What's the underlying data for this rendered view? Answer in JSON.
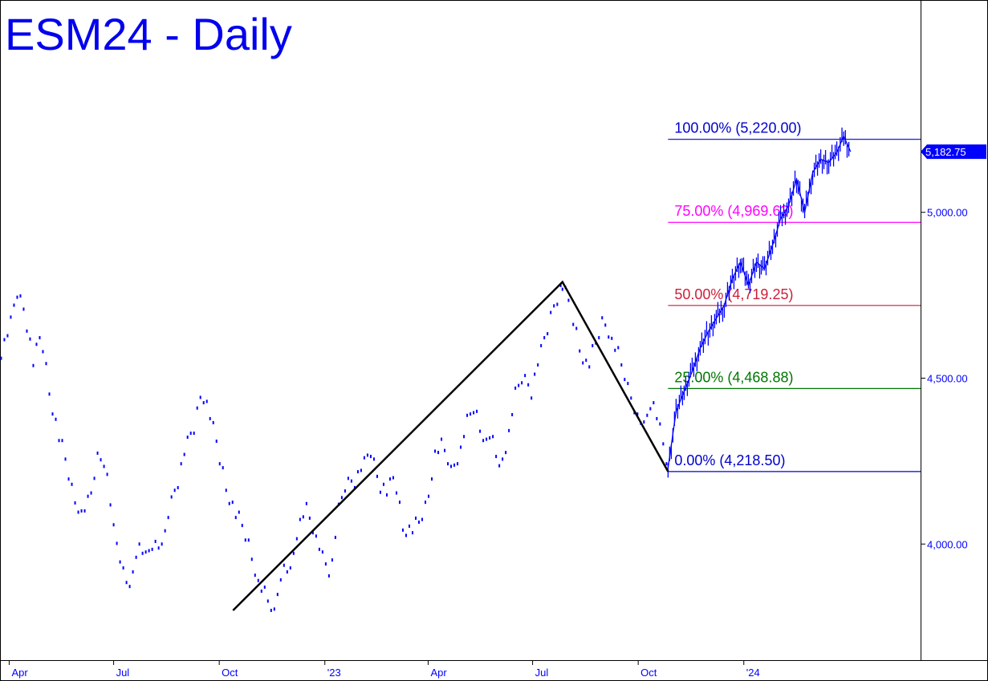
{
  "chart_data": {
    "type": "line",
    "title": "ESM24 - Daily",
    "colors": {
      "price": "#0000ff",
      "swing": "#000000",
      "fib_100": "#0000cc",
      "fib_75": "#ff00ff",
      "fib_50": "#cc1f3a",
      "fib_25": "#007700",
      "fib_0": "#0000cc",
      "axis": "#000000",
      "title": "#0000ee"
    },
    "ylim": [
      3650,
      5640
    ],
    "y_ticks": [
      {
        "value": 4000,
        "label": "4,000.00"
      },
      {
        "value": 4500,
        "label": "4,500.00"
      },
      {
        "value": 5000,
        "label": "5,000.00"
      }
    ],
    "x_ticks": [
      {
        "date": "2022-04-01",
        "label": "Apr"
      },
      {
        "date": "2022-07-01",
        "label": "Jul"
      },
      {
        "date": "2022-10-01",
        "label": "Oct"
      },
      {
        "date": "2023-01-01",
        "label": "'23"
      },
      {
        "date": "2023-04-01",
        "label": "Apr"
      },
      {
        "date": "2023-07-01",
        "label": "Jul"
      },
      {
        "date": "2023-10-01",
        "label": "Oct"
      },
      {
        "date": "2024-01-01",
        "label": "'24"
      }
    ],
    "x_range": [
      "2022-03-24",
      "2024-06-03"
    ],
    "last_price": {
      "value": 5182.75,
      "label": "5,182.75"
    },
    "fib_levels": [
      {
        "pct": "100.00%",
        "value": 5220.0,
        "label": "100.00% (5,220.00)",
        "color_key": "fib_100",
        "start": "2023-10-27"
      },
      {
        "pct": "75.00%",
        "value": 4969.63,
        "label": "75.00% (4,969.63)",
        "color_key": "fib_75",
        "start": "2023-10-27"
      },
      {
        "pct": "50.00%",
        "value": 4719.25,
        "label": "50.00% (4,719.25)",
        "color_key": "fib_50",
        "start": "2023-10-27"
      },
      {
        "pct": "25.00%",
        "value": 4468.88,
        "label": "25.00% (4,468.88)",
        "color_key": "fib_25",
        "start": "2023-10-27"
      },
      {
        "pct": "0.00%",
        "value": 4218.5,
        "label": "0.00% (4,218.50)",
        "color_key": "fib_0",
        "start": "2023-10-27"
      }
    ],
    "swing_points": [
      {
        "date": "2022-10-13",
        "value": 3800
      },
      {
        "date": "2023-07-27",
        "value": 4790
      },
      {
        "date": "2023-10-27",
        "value": 4218.5
      }
    ],
    "series": [
      {
        "points": [
          [
            "2022-03-25",
            4580
          ],
          [
            "2022-04-01",
            4640
          ],
          [
            "2022-04-08",
            4760
          ],
          [
            "2022-04-15",
            4690
          ],
          [
            "2022-04-22",
            4550
          ],
          [
            "2022-04-29",
            4630
          ],
          [
            "2022-05-06",
            4460
          ],
          [
            "2022-05-13",
            4340
          ],
          [
            "2022-05-20",
            4260
          ],
          [
            "2022-05-27",
            4140
          ],
          [
            "2022-06-03",
            4100
          ],
          [
            "2022-06-10",
            4130
          ],
          [
            "2022-06-17",
            4270
          ],
          [
            "2022-06-24",
            4250
          ],
          [
            "2022-07-01",
            4050
          ],
          [
            "2022-07-08",
            3940
          ],
          [
            "2022-07-15",
            3860
          ],
          [
            "2022-07-22",
            4000
          ],
          [
            "2022-07-29",
            3960
          ],
          [
            "2022-08-05",
            4000
          ],
          [
            "2022-08-12",
            3980
          ],
          [
            "2022-08-19",
            4110
          ],
          [
            "2022-08-26",
            4190
          ],
          [
            "2022-09-02",
            4290
          ],
          [
            "2022-09-09",
            4350
          ],
          [
            "2022-09-16",
            4460
          ],
          [
            "2022-09-23",
            4390
          ],
          [
            "2022-09-30",
            4280
          ],
          [
            "2022-10-07",
            4170
          ],
          [
            "2022-10-14",
            4100
          ],
          [
            "2022-10-21",
            4060
          ],
          [
            "2022-10-28",
            3980
          ],
          [
            "2022-11-04",
            3890
          ],
          [
            "2022-11-11",
            3840
          ],
          [
            "2022-11-18",
            3800
          ],
          [
            "2022-11-25",
            3940
          ],
          [
            "2022-12-02",
            3920
          ],
          [
            "2022-12-09",
            4060
          ],
          [
            "2022-12-16",
            4110
          ],
          [
            "2022-12-23",
            4030
          ],
          [
            "2022-12-30",
            3960
          ],
          [
            "2023-01-06",
            3900
          ],
          [
            "2023-01-13",
            4100
          ],
          [
            "2023-01-20",
            4180
          ],
          [
            "2023-01-27",
            4190
          ],
          [
            "2023-02-03",
            4230
          ],
          [
            "2023-02-10",
            4280
          ],
          [
            "2023-02-17",
            4180
          ],
          [
            "2023-02-24",
            4160
          ],
          [
            "2023-03-03",
            4200
          ],
          [
            "2023-03-10",
            4050
          ],
          [
            "2023-03-17",
            4040
          ],
          [
            "2023-03-24",
            4070
          ],
          [
            "2023-03-31",
            4120
          ],
          [
            "2023-04-07",
            4280
          ],
          [
            "2023-04-14",
            4300
          ],
          [
            "2023-04-21",
            4230
          ],
          [
            "2023-04-28",
            4270
          ],
          [
            "2023-05-05",
            4380
          ],
          [
            "2023-05-12",
            4420
          ],
          [
            "2023-05-19",
            4300
          ],
          [
            "2023-05-26",
            4340
          ],
          [
            "2023-06-02",
            4220
          ],
          [
            "2023-06-09",
            4300
          ],
          [
            "2023-06-16",
            4450
          ],
          [
            "2023-06-23",
            4500
          ],
          [
            "2023-06-30",
            4460
          ],
          [
            "2023-07-07",
            4560
          ],
          [
            "2023-07-14",
            4650
          ],
          [
            "2023-07-21",
            4730
          ],
          [
            "2023-07-27",
            4780
          ],
          [
            "2023-08-04",
            4700
          ],
          [
            "2023-08-11",
            4590
          ],
          [
            "2023-08-18",
            4530
          ],
          [
            "2023-08-25",
            4610
          ],
          [
            "2023-09-01",
            4680
          ],
          [
            "2023-09-08",
            4620
          ],
          [
            "2023-09-15",
            4560
          ],
          [
            "2023-09-22",
            4480
          ],
          [
            "2023-09-29",
            4400
          ],
          [
            "2023-10-06",
            4360
          ],
          [
            "2023-10-13",
            4440
          ],
          [
            "2023-10-20",
            4350
          ],
          [
            "2023-10-27",
            4230
          ],
          [
            "2023-11-03",
            4400
          ],
          [
            "2023-11-10",
            4460
          ],
          [
            "2023-11-17",
            4520
          ],
          [
            "2023-11-24",
            4590
          ],
          [
            "2023-12-01",
            4640
          ],
          [
            "2023-12-08",
            4680
          ],
          [
            "2023-12-15",
            4720
          ],
          [
            "2023-12-22",
            4800
          ],
          [
            "2023-12-29",
            4850
          ],
          [
            "2024-01-05",
            4780
          ],
          [
            "2024-01-12",
            4850
          ],
          [
            "2024-01-19",
            4830
          ],
          [
            "2024-01-26",
            4900
          ],
          [
            "2024-02-02",
            4980
          ],
          [
            "2024-02-09",
            5020
          ],
          [
            "2024-02-16",
            5100
          ],
          [
            "2024-02-23",
            5000
          ],
          [
            "2024-03-01",
            5120
          ],
          [
            "2024-03-08",
            5160
          ],
          [
            "2024-03-15",
            5150
          ],
          [
            "2024-03-22",
            5180
          ],
          [
            "2024-03-28",
            5230
          ],
          [
            "2024-04-03",
            5182.75
          ]
        ]
      }
    ]
  }
}
